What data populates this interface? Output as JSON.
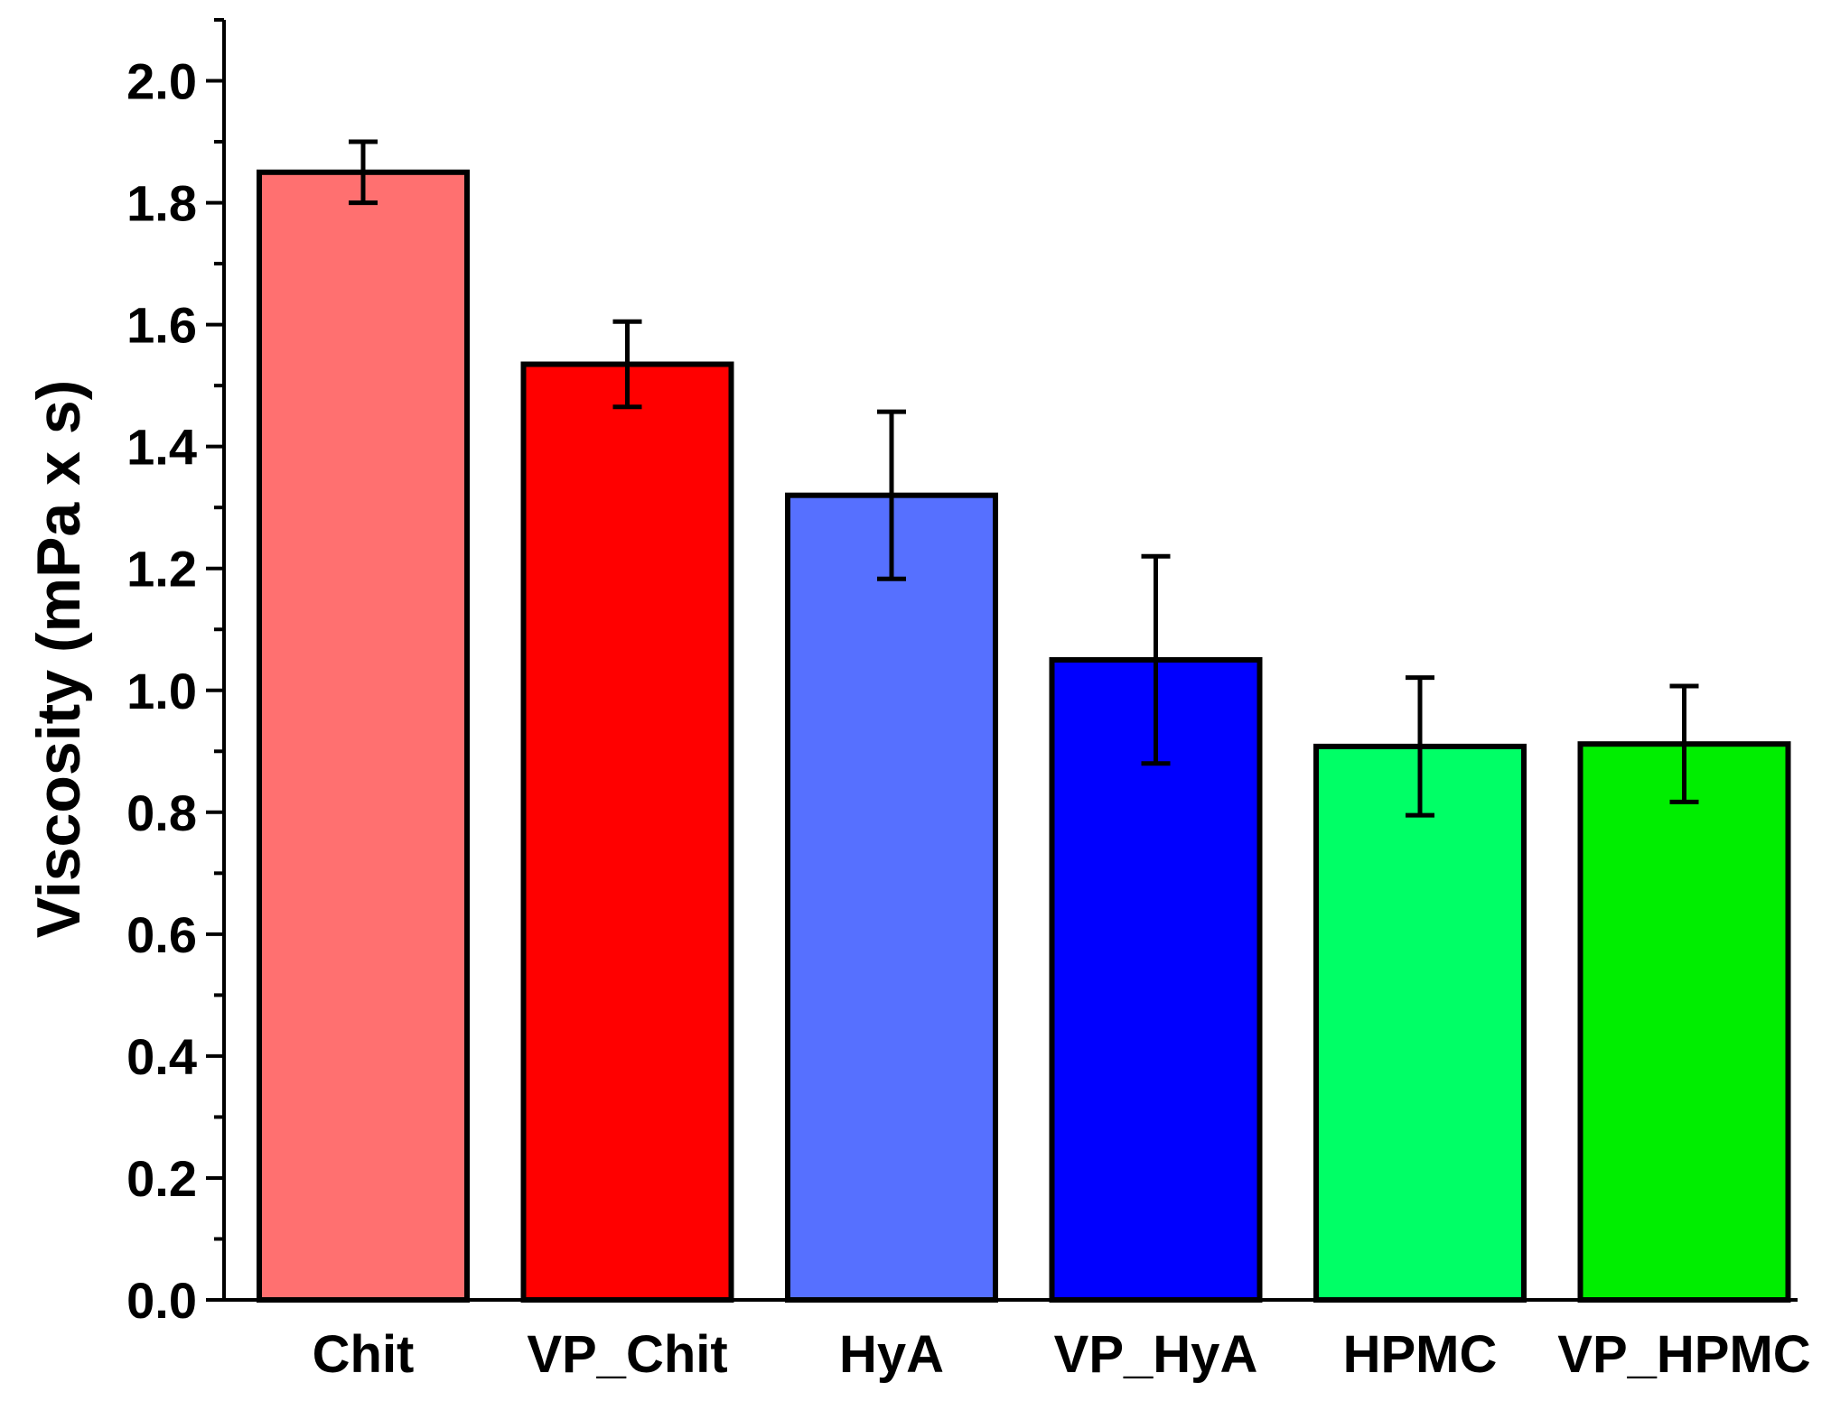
{
  "chart_data": {
    "type": "bar",
    "title": "",
    "xlabel": "",
    "ylabel": "Viscosity (mPa x s)",
    "ylim": [
      0,
      2.1
    ],
    "yticks": [
      0.0,
      0.2,
      0.4,
      0.6,
      0.8,
      1.0,
      1.2,
      1.4,
      1.6,
      1.8,
      2.0
    ],
    "ytick_labels": [
      "0.0",
      "0.2",
      "0.4",
      "0.6",
      "0.8",
      "1.0",
      "1.2",
      "1.4",
      "1.6",
      "1.8",
      "2.0"
    ],
    "grid": false,
    "categories": [
      "Chit",
      "VP_Chit",
      "HyA",
      "VP_HyA",
      "HPMC",
      "VP_HPMC"
    ],
    "values": [
      1.85,
      1.535,
      1.32,
      1.05,
      0.908,
      0.912
    ],
    "errors": [
      0.05,
      0.07,
      0.137,
      0.17,
      0.113,
      0.095
    ],
    "colors": [
      "#ff7070",
      "#ff0000",
      "#5670ff",
      "#0000ff",
      "#00ff66",
      "#00ee00"
    ]
  }
}
